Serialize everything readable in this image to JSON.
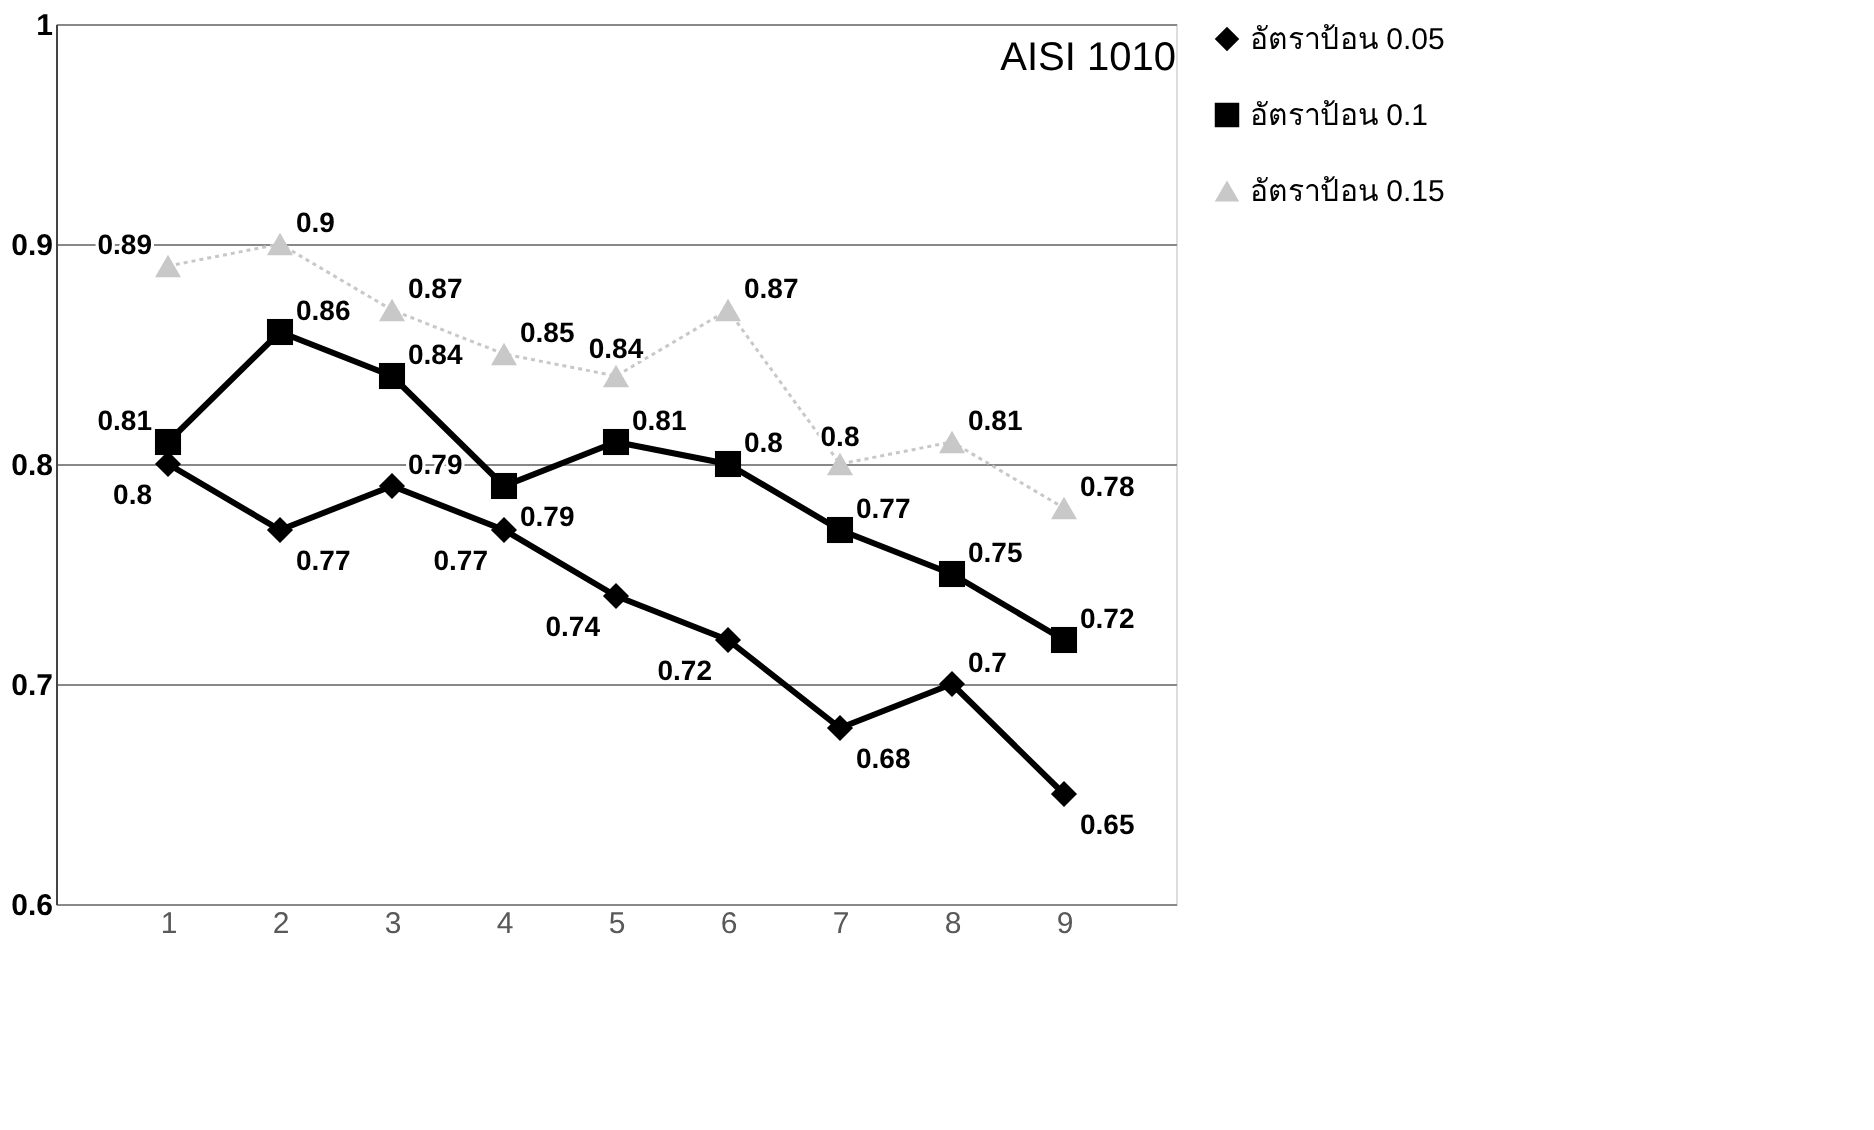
{
  "chart_data": {
    "type": "line",
    "title": "AISI 1010",
    "categories": [
      "1",
      "2",
      "3",
      "4",
      "5",
      "6",
      "7",
      "8",
      "9"
    ],
    "series": [
      {
        "name": "อัตราป้อน 0.05",
        "color": "#000000",
        "marker": "diamond",
        "line_style": "solid",
        "values": [
          0.8,
          0.77,
          0.79,
          0.77,
          0.74,
          0.72,
          0.68,
          0.7,
          0.65
        ]
      },
      {
        "name": "อัตราป้อน 0.1",
        "color": "#000000",
        "marker": "square",
        "line_style": "solid",
        "values": [
          0.81,
          0.86,
          0.84,
          0.79,
          0.81,
          0.8,
          0.77,
          0.75,
          0.72
        ]
      },
      {
        "name": "อัตราป้อน 0.15",
        "color": "#c8c8c8",
        "marker": "triangle",
        "line_style": "dotted",
        "values": [
          0.89,
          0.9,
          0.87,
          0.85,
          0.84,
          0.87,
          0.8,
          0.81,
          0.78
        ]
      }
    ],
    "ylim": [
      0.6,
      1
    ],
    "yticks": [
      0.6,
      0.7,
      0.8,
      0.9,
      1
    ],
    "grid": "y",
    "legend": "right",
    "data_labels": true
  }
}
